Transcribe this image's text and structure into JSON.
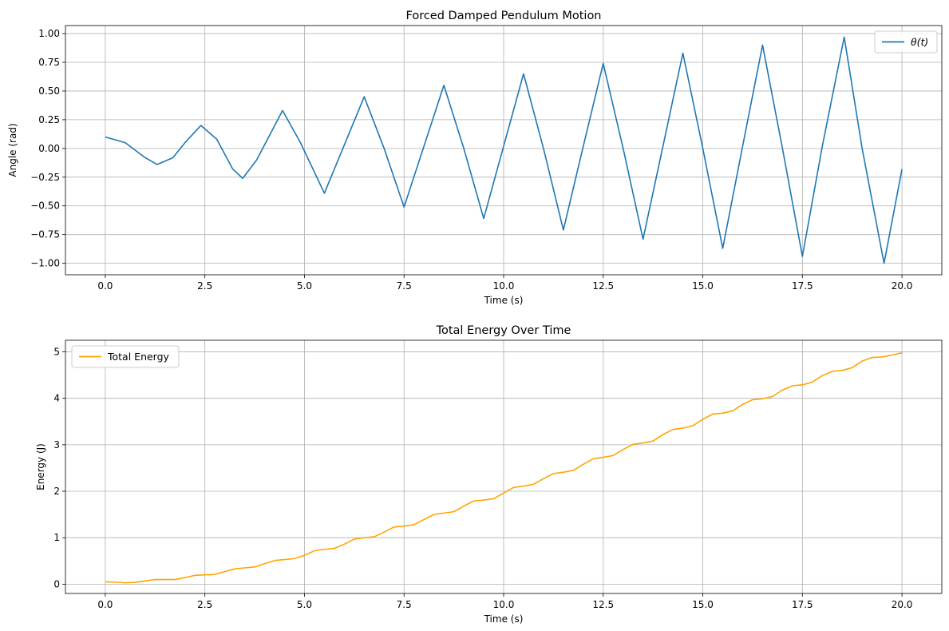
{
  "chart_data": [
    {
      "type": "line",
      "title": "Forced Damped Pendulum Motion",
      "xlabel": "Time (s)",
      "ylabel": "Angle (rad)",
      "xlim": [
        -1.0,
        21.0
      ],
      "ylim": [
        -1.1,
        1.07
      ],
      "xticks": [
        0,
        2.5,
        5,
        7.5,
        10,
        12.5,
        15,
        17.5,
        20
      ],
      "xtick_labels": [
        "0.0",
        "2.5",
        "5.0",
        "7.5",
        "10.0",
        "12.5",
        "15.0",
        "17.5",
        "20.0"
      ],
      "yticks": [
        -1.0,
        -0.75,
        -0.5,
        -0.25,
        0,
        0.25,
        0.5,
        0.75,
        1.0
      ],
      "ytick_labels": [
        "−1.00",
        "−0.75",
        "−0.50",
        "−0.25",
        "0.00",
        "0.25",
        "0.50",
        "0.75",
        "1.00"
      ],
      "grid": true,
      "legend_position": "top-right",
      "series": [
        {
          "name": "θ(t)",
          "color": "#1f77b4",
          "x": [
            0,
            0.5,
            1.0,
            1.3,
            1.7,
            2.0,
            2.4,
            2.8,
            3.2,
            3.45,
            3.8,
            4.45,
            4.9,
            5.5,
            6.0,
            6.5,
            7.0,
            7.5,
            8.0,
            8.5,
            9.0,
            9.5,
            10.0,
            10.5,
            11.0,
            11.5,
            12.0,
            12.5,
            13.0,
            13.5,
            14.0,
            14.5,
            15.0,
            15.5,
            16.0,
            16.5,
            17.0,
            17.5,
            18.0,
            18.55,
            19.0,
            19.55,
            20.0
          ],
          "y": [
            0.1,
            0.05,
            -0.08,
            -0.14,
            -0.08,
            0.05,
            0.2,
            0.08,
            -0.18,
            -0.26,
            -0.1,
            0.33,
            0.05,
            -0.39,
            0.03,
            0.45,
            0.0,
            -0.51,
            0.02,
            0.55,
            0.0,
            -0.61,
            0.02,
            0.65,
            0.0,
            -0.71,
            0.02,
            0.74,
            0.0,
            -0.79,
            0.02,
            0.83,
            0.0,
            -0.87,
            0.02,
            0.9,
            0.0,
            -0.94,
            0.02,
            0.97,
            0.0,
            -1.0,
            -0.18
          ]
        }
      ]
    },
    {
      "type": "line",
      "title": "Total Energy Over Time",
      "xlabel": "Time (s)",
      "ylabel": "Energy (J)",
      "xlim": [
        -1.0,
        21.0
      ],
      "ylim": [
        -0.2,
        5.25
      ],
      "xticks": [
        0,
        2.5,
        5,
        7.5,
        10,
        12.5,
        15,
        17.5,
        20
      ],
      "xtick_labels": [
        "0.0",
        "2.5",
        "5.0",
        "7.5",
        "10.0",
        "12.5",
        "15.0",
        "17.5",
        "20.0"
      ],
      "yticks": [
        0,
        1,
        2,
        3,
        4,
        5
      ],
      "ytick_labels": [
        "0",
        "1",
        "2",
        "3",
        "4",
        "5"
      ],
      "grid": true,
      "legend_position": "top-left",
      "series": [
        {
          "name": "Total Energy",
          "color": "#ffa500",
          "x": [
            0,
            0.25,
            0.5,
            0.75,
            1.0,
            1.25,
            1.5,
            1.75,
            2.0,
            2.25,
            2.5,
            2.75,
            3.0,
            3.25,
            3.5,
            3.75,
            4.0,
            4.25,
            4.5,
            4.75,
            5.0,
            5.25,
            5.5,
            5.75,
            6.0,
            6.25,
            6.5,
            6.75,
            7.0,
            7.25,
            7.5,
            7.75,
            8.0,
            8.25,
            8.5,
            8.75,
            9.0,
            9.25,
            9.5,
            9.75,
            10.0,
            10.25,
            10.5,
            10.75,
            11.0,
            11.25,
            11.5,
            11.75,
            12.0,
            12.25,
            12.5,
            12.75,
            13.0,
            13.25,
            13.5,
            13.75,
            14.0,
            14.25,
            14.5,
            14.75,
            15.0,
            15.25,
            15.5,
            15.75,
            16.0,
            16.25,
            16.5,
            16.75,
            17.0,
            17.25,
            17.5,
            17.75,
            18.0,
            18.25,
            18.5,
            18.75,
            19.0,
            19.25,
            19.5,
            19.75,
            20.0
          ],
          "y": [
            0.05,
            0.045,
            0.03,
            0.04,
            0.07,
            0.1,
            0.1,
            0.1,
            0.14,
            0.19,
            0.2,
            0.21,
            0.27,
            0.33,
            0.35,
            0.37,
            0.44,
            0.51,
            0.53,
            0.55,
            0.62,
            0.72,
            0.75,
            0.77,
            0.86,
            0.97,
            1.0,
            1.02,
            1.12,
            1.23,
            1.25,
            1.28,
            1.39,
            1.5,
            1.53,
            1.56,
            1.68,
            1.79,
            1.81,
            1.84,
            1.96,
            2.08,
            2.11,
            2.15,
            2.27,
            2.38,
            2.41,
            2.45,
            2.58,
            2.7,
            2.73,
            2.77,
            2.9,
            3.01,
            3.04,
            3.08,
            3.22,
            3.33,
            3.36,
            3.41,
            3.55,
            3.66,
            3.68,
            3.73,
            3.87,
            3.97,
            3.99,
            4.04,
            4.18,
            4.27,
            4.29,
            4.35,
            4.49,
            4.58,
            4.6,
            4.66,
            4.8,
            4.88,
            4.89,
            4.93,
            4.98
          ]
        }
      ]
    }
  ]
}
